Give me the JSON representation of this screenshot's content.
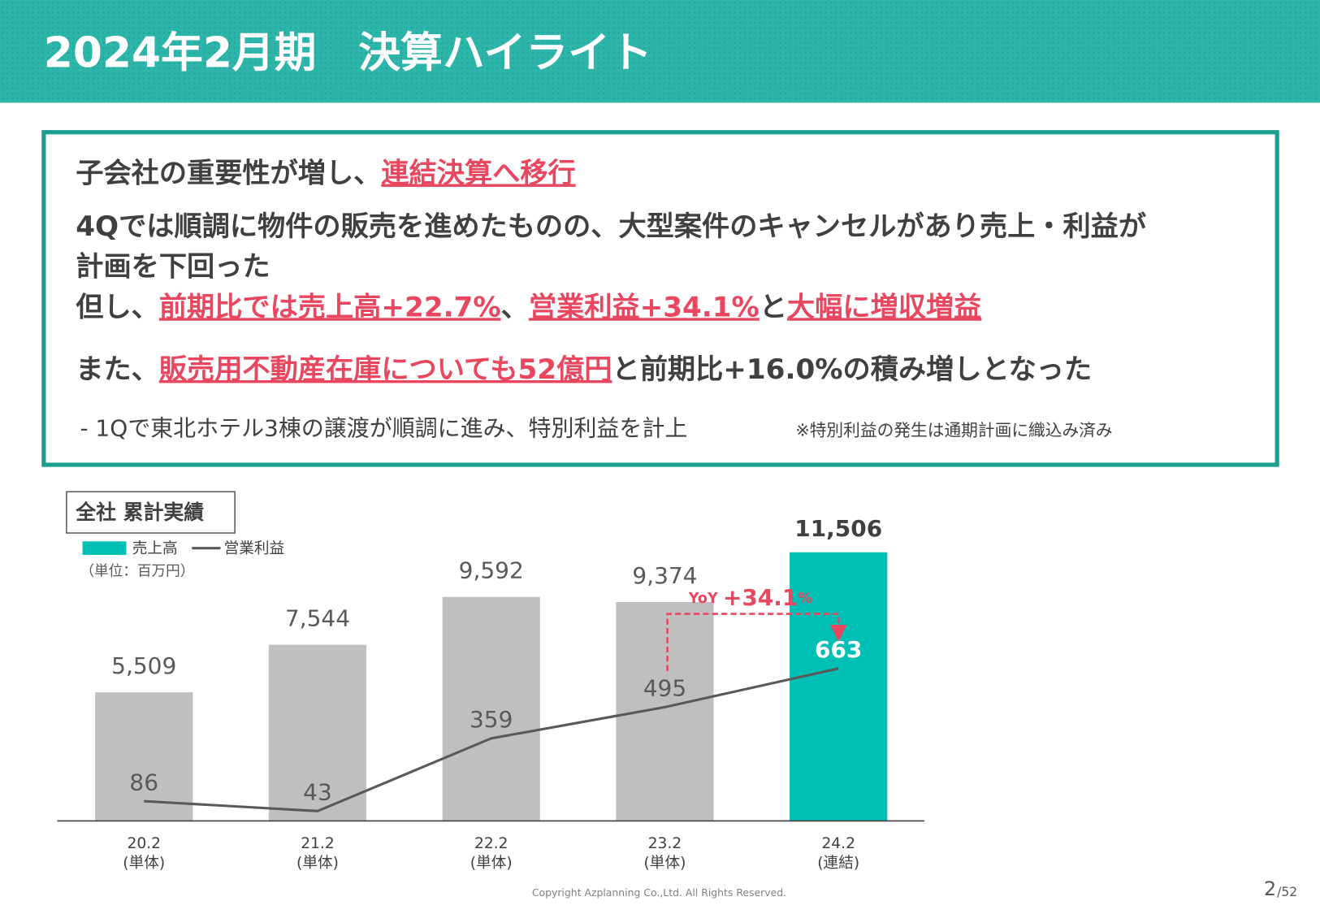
{
  "header": {
    "title": "2024年2月期　決算ハイライト"
  },
  "highlights": {
    "lines": [
      [
        {
          "text": "子会社の重要性が増し、"
        },
        {
          "text": "連結決算へ移行",
          "emphasis": true
        }
      ],
      [
        {
          "text": "4Qでは順調に物件の販売を進めたものの、大型案件のキャンセルがあり売上・利益が"
        }
      ],
      [
        {
          "text": "計画を下回った"
        }
      ],
      [
        {
          "text": "但し、"
        },
        {
          "text": "前期比では売上高+22.7%",
          "emphasis": true
        },
        {
          "text": "、"
        },
        {
          "text": "営業利益+34.1%",
          "emphasis": true
        },
        {
          "text": "と"
        },
        {
          "text": "大幅に増収増益",
          "emphasis": true
        }
      ],
      [
        {
          "text": "また、"
        },
        {
          "text": "販売用不動産在庫についても52億円",
          "emphasis": true
        },
        {
          "text": "と前期比+16.0%の積み増しとなった"
        }
      ]
    ],
    "note": "- 1Qで東北ホテル3棟の譲渡が順調に進み、特別利益を計上",
    "side_note": "※特別利益の発生は通期計画に織込み済み",
    "emphasis_color": "#e8475f"
  },
  "chart_data": {
    "type": "bar",
    "title": "全社 累計実績",
    "unit_label": "（単位：百万円）",
    "categories": [
      "20.2",
      "21.2",
      "22.2",
      "23.2",
      "24.2"
    ],
    "category_notes": [
      "(単体)",
      "(単体)",
      "(単体)",
      "(単体)",
      "(連結)"
    ],
    "series": [
      {
        "name": "売上高",
        "type": "bar",
        "color": "#00c0b5",
        "colors": [
          "#bfbfbf",
          "#bfbfbf",
          "#bfbfbf",
          "#bfbfbf",
          "#00c0b5"
        ],
        "values": [
          5509,
          7544,
          9592,
          9374,
          11506
        ],
        "value_labels": [
          "5,509",
          "7,544",
          "9,592",
          "9,374",
          "11,506"
        ],
        "label_colors": [
          "#595959",
          "#595959",
          "#595959",
          "#595959",
          "#404040"
        ]
      },
      {
        "name": "営業利益",
        "type": "line",
        "axis": "y2",
        "color": "#595959",
        "values": [
          86,
          43,
          359,
          495,
          663
        ],
        "label_colors": [
          "#595959",
          "#595959",
          "#595959",
          "#595959",
          "#ffffff"
        ]
      }
    ],
    "ylim": [
      0,
      12800
    ],
    "y2lim": [
      0,
      1300
    ],
    "annotation": {
      "prefix": "YoY",
      "value": "+34.1",
      "suffix": "%",
      "color": "#e8475f"
    }
  },
  "footer": {
    "copyright": "Copyright Azplanning Co.,Ltd. All Rights Reserved.",
    "page": "2",
    "pages": "/52"
  }
}
